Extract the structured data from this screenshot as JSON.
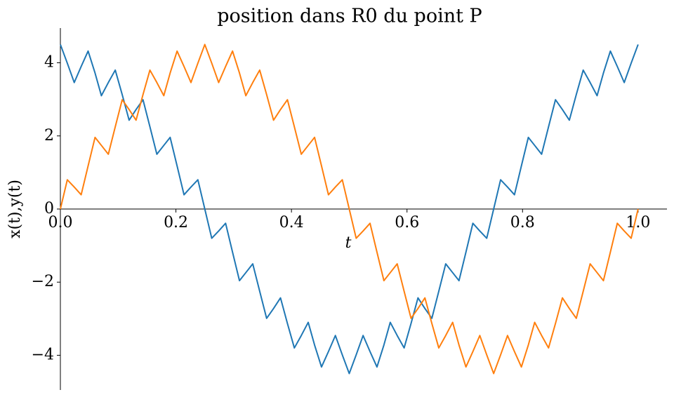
{
  "chart_data": {
    "type": "line",
    "title": "position dans R0 du point P",
    "x_label": "t",
    "y_label": "x(t),y(t)",
    "xlim": [
      0,
      1.05
    ],
    "ylim": [
      -4.95,
      4.95
    ],
    "xticks": [
      {
        "value": 0,
        "label": "0.0"
      },
      0.2,
      0.4,
      0.6,
      0.8,
      {
        "value": 1,
        "label": "1.0"
      }
    ],
    "yticks": [
      {
        "value": -4,
        "label": "−4"
      },
      {
        "value": -2,
        "label": "−2"
      },
      0,
      2,
      4
    ],
    "x": [
      0,
      0.012,
      0.024,
      0.036,
      0.048,
      0.06,
      0.071,
      0.083,
      0.095,
      0.107,
      0.119,
      0.131,
      0.143,
      0.155,
      0.167,
      0.179,
      0.19,
      0.202,
      0.214,
      0.226,
      0.238,
      0.25,
      0.262,
      0.274,
      0.286,
      0.298,
      0.31,
      0.321,
      0.333,
      0.345,
      0.357,
      0.369,
      0.381,
      0.393,
      0.405,
      0.417,
      0.429,
      0.44,
      0.452,
      0.464,
      0.476,
      0.488,
      0.5,
      0.512,
      0.524,
      0.536,
      0.548,
      0.56,
      0.571,
      0.583,
      0.595,
      0.607,
      0.619,
      0.631,
      0.643,
      0.655,
      0.667,
      0.679,
      0.69,
      0.702,
      0.714,
      0.726,
      0.738,
      0.75,
      0.762,
      0.774,
      0.786,
      0.798,
      0.81,
      0.821,
      0.833,
      0.845,
      0.857,
      0.869,
      0.881,
      0.893,
      0.905,
      0.917,
      0.929,
      0.94,
      0.952,
      0.964,
      0.976,
      0.988,
      1
    ],
    "series": [
      {
        "color": "#1f77b4",
        "values": [
          4.5,
          3.99,
          3.46,
          3.9,
          4.32,
          3.72,
          3.1,
          3.46,
          3.8,
          3.13,
          2.43,
          2.72,
          2.99,
          2.25,
          1.5,
          1.74,
          1.96,
          1.18,
          0.39,
          0.6,
          0.8,
          0,
          -0.8,
          -0.6,
          -0.39,
          -1.18,
          -1.96,
          -1.74,
          -1.5,
          -2.25,
          -2.99,
          -2.72,
          -2.43,
          -3.13,
          -3.8,
          -3.46,
          -3.1,
          -3.72,
          -4.32,
          -3.9,
          -3.46,
          -3.99,
          -4.5,
          -3.99,
          -3.46,
          -3.9,
          -4.32,
          -3.72,
          -3.1,
          -3.46,
          -3.8,
          -3.13,
          -2.43,
          -2.72,
          -2.99,
          -2.25,
          -1.5,
          -1.74,
          -1.96,
          -1.18,
          -0.39,
          -0.6,
          -0.8,
          0,
          0.8,
          0.6,
          0.39,
          1.18,
          1.96,
          1.74,
          1.5,
          2.25,
          2.99,
          2.72,
          2.43,
          3.13,
          3.8,
          3.46,
          3.1,
          3.72,
          4.32,
          3.9,
          3.46,
          3.99,
          4.5
        ]
      },
      {
        "color": "#ff7f0e",
        "values": [
          0,
          0.8,
          0.6,
          0.39,
          1.18,
          1.96,
          1.74,
          1.5,
          2.25,
          2.99,
          2.72,
          2.43,
          3.13,
          3.8,
          3.46,
          3.1,
          3.72,
          4.32,
          3.9,
          3.46,
          3.99,
          4.5,
          3.99,
          3.46,
          3.9,
          4.32,
          3.72,
          3.1,
          3.46,
          3.8,
          3.13,
          2.43,
          2.72,
          2.99,
          2.25,
          1.5,
          1.74,
          1.96,
          1.18,
          0.39,
          0.6,
          0.8,
          0,
          -0.8,
          -0.6,
          -0.39,
          -1.18,
          -1.96,
          -1.74,
          -1.5,
          -2.25,
          -2.99,
          -2.72,
          -2.43,
          -3.13,
          -3.8,
          -3.46,
          -3.1,
          -3.72,
          -4.32,
          -3.9,
          -3.46,
          -3.99,
          -4.5,
          -3.99,
          -3.46,
          -3.9,
          -4.32,
          -3.72,
          -3.1,
          -3.46,
          -3.8,
          -3.13,
          -2.43,
          -2.72,
          -2.99,
          -2.25,
          -1.5,
          -1.74,
          -1.96,
          -1.18,
          -0.39,
          -0.6,
          -0.8,
          0
        ]
      }
    ]
  }
}
